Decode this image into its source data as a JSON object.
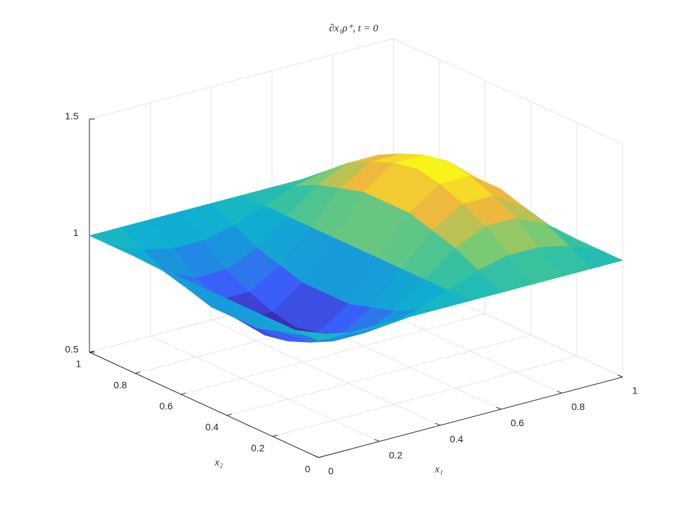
{
  "chart_data": {
    "type": "surface",
    "title": "∂x₁ρ⁺, t = 0",
    "xlabel": "x₁",
    "ylabel": "x₂",
    "x": [
      0,
      0.1,
      0.2,
      0.3,
      0.4,
      0.5,
      0.6,
      0.7,
      0.8,
      0.9,
      1
    ],
    "y": [
      0,
      0.1,
      0.2,
      0.3,
      0.4,
      0.5,
      0.6,
      0.7,
      0.8,
      0.9,
      1
    ],
    "z": [
      [
        1,
        1,
        1,
        1,
        1,
        1,
        1,
        1,
        1,
        1,
        1
      ],
      [
        1,
        0.95,
        0.92,
        0.92,
        0.95,
        1,
        1.05,
        1.08,
        1.08,
        1.05,
        1
      ],
      [
        1,
        0.9,
        0.84,
        0.84,
        0.9,
        1,
        1.1,
        1.16,
        1.16,
        1.1,
        1
      ],
      [
        1,
        0.87,
        0.79,
        0.79,
        0.87,
        1,
        1.13,
        1.21,
        1.21,
        1.13,
        1
      ],
      [
        1,
        0.84,
        0.75,
        0.75,
        0.84,
        1,
        1.16,
        1.25,
        1.25,
        1.16,
        1
      ],
      [
        1,
        0.84,
        0.73,
        0.73,
        0.84,
        1,
        1.16,
        1.27,
        1.27,
        1.16,
        1
      ],
      [
        1,
        0.84,
        0.75,
        0.75,
        0.84,
        1,
        1.16,
        1.25,
        1.25,
        1.16,
        1
      ],
      [
        1,
        0.87,
        0.79,
        0.79,
        0.87,
        1,
        1.13,
        1.21,
        1.21,
        1.13,
        1
      ],
      [
        1,
        0.9,
        0.84,
        0.84,
        0.9,
        1,
        1.1,
        1.16,
        1.16,
        1.1,
        1
      ],
      [
        1,
        0.95,
        0.92,
        0.92,
        0.95,
        1,
        1.05,
        1.08,
        1.08,
        1.05,
        1
      ],
      [
        1,
        1,
        1,
        1,
        1,
        1,
        1,
        1,
        1,
        1,
        1
      ]
    ],
    "xlim": [
      0,
      1
    ],
    "ylim": [
      0,
      1
    ],
    "zlim": [
      0.5,
      1.5
    ],
    "xticks": [
      0,
      0.2,
      0.4,
      0.6,
      0.8,
      1
    ],
    "yticks": [
      0,
      0.2,
      0.4,
      0.6,
      0.8,
      1
    ],
    "zticks": [
      0.5,
      1,
      1.5
    ],
    "grid": true
  }
}
